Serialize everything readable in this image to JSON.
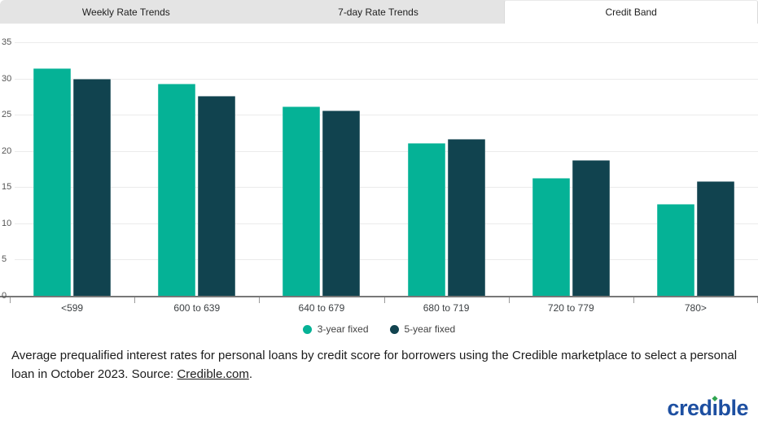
{
  "tabs": [
    {
      "label": "Weekly Rate Trends",
      "active": false
    },
    {
      "label": "7-day Rate Trends",
      "active": false
    },
    {
      "label": "Credit Band",
      "active": true
    }
  ],
  "chart_data": {
    "type": "bar",
    "categories": [
      "<599",
      "600 to 639",
      "640 to 679",
      "680 to 719",
      "720 to 779",
      "780>"
    ],
    "series": [
      {
        "name": "3-year fixed",
        "color": "#05B296",
        "values": [
          31.4,
          29.3,
          26.1,
          21.1,
          16.3,
          12.7
        ]
      },
      {
        "name": "5-year fixed",
        "color": "#11434F",
        "values": [
          30.0,
          27.6,
          25.6,
          21.7,
          18.7,
          15.8
        ]
      }
    ],
    "ylabel": "",
    "xlabel": "",
    "ylim": [
      0,
      35
    ],
    "yticks": [
      0,
      5,
      10,
      15,
      20,
      25,
      30,
      35
    ],
    "grid": true,
    "legend_position": "bottom",
    "gridline_color": "#ebebeb",
    "axis_color": "#777777"
  },
  "caption": {
    "text_before": "Average prequalified interest rates for personal loans by credit score for borrowers using the Credible marketplace to select a personal loan in October 2023. Source: ",
    "link_text": "Credible.com",
    "text_after": "."
  },
  "logo": {
    "prefix": "cred",
    "i_char": "ı",
    "suffix": "ble",
    "text_color": "#1d4fa1",
    "dot_color": "#2ea44f"
  }
}
